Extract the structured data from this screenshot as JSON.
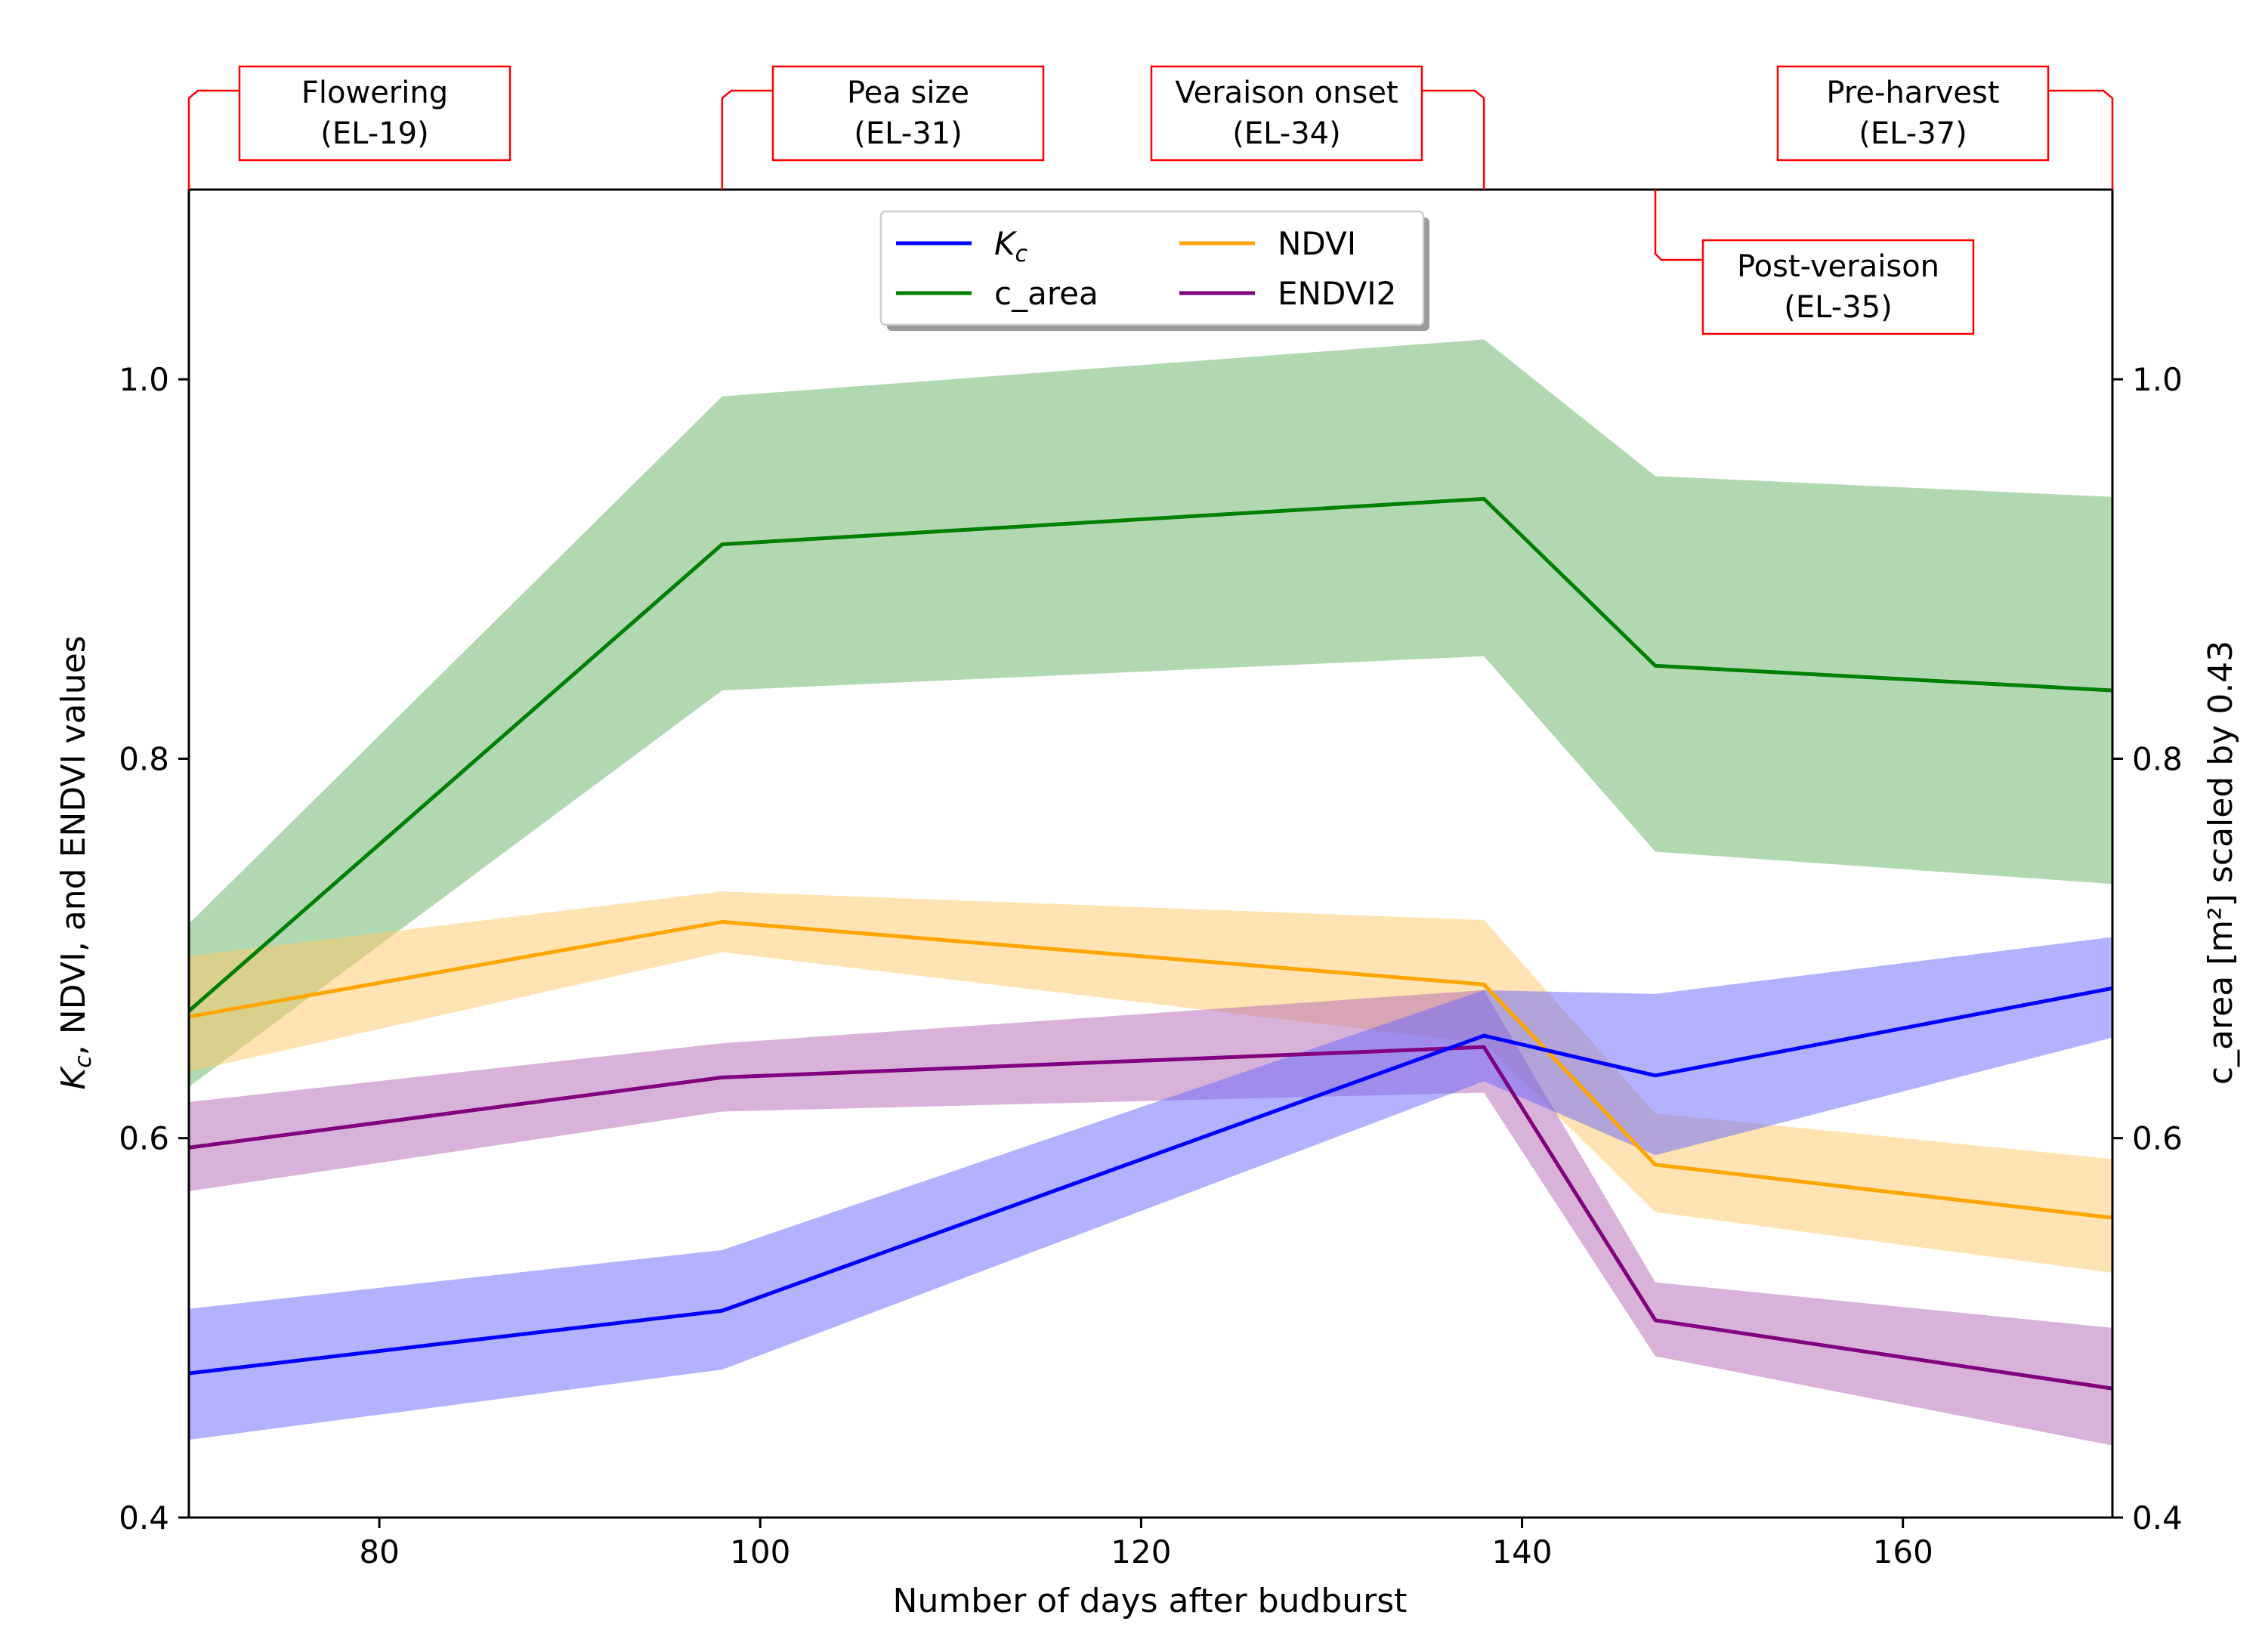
{
  "chart_data": {
    "type": "line",
    "xlabel": "Number of days after budburst",
    "ylabel_left_prefix": "K",
    "ylabel_left_sub": "c",
    "ylabel_left_rest": ", NDVI, and ENDVI values",
    "ylabel_right": "c_area [m²] scaled by 0.43",
    "xlim": [
      70,
      171
    ],
    "ylim": [
      0.4,
      1.1
    ],
    "x_ticks": [
      80,
      100,
      120,
      140,
      160
    ],
    "x_tick_labels": [
      "80",
      "100",
      "120",
      "140",
      "160"
    ],
    "y_ticks": [
      0.4,
      0.6,
      0.8,
      1.0
    ],
    "y_tick_labels": [
      "0.4",
      "0.6",
      "0.8",
      "1.0"
    ],
    "x": [
      70,
      98,
      138,
      147,
      171
    ],
    "series": [
      {
        "name": "c_area",
        "key": "carea",
        "color": "#008000",
        "band_color": "#66b266",
        "values": [
          0.667,
          0.913,
          0.937,
          0.849,
          0.836
        ],
        "lower": [
          0.627,
          0.836,
          0.854,
          0.751,
          0.734
        ],
        "upper": [
          0.713,
          0.991,
          1.021,
          0.949,
          0.938
        ]
      },
      {
        "name": "NDVI",
        "key": "ndvi",
        "color": "#ffa500",
        "band_color": "#ffc766",
        "values": [
          0.664,
          0.714,
          0.681,
          0.586,
          0.558
        ],
        "lower": [
          0.635,
          0.698,
          0.65,
          0.561,
          0.529
        ],
        "upper": [
          0.696,
          0.73,
          0.715,
          0.613,
          0.589
        ]
      },
      {
        "name": "ENDVI2",
        "key": "endvi2",
        "color": "#800080",
        "band_color": "#b366b3",
        "values": [
          0.595,
          0.632,
          0.648,
          0.504,
          0.468
        ],
        "lower": [
          0.572,
          0.614,
          0.624,
          0.485,
          0.438
        ],
        "upper": [
          0.619,
          0.65,
          0.678,
          0.524,
          0.5
        ]
      },
      {
        "name": "Kc",
        "key": "kc",
        "color": "#0000ff",
        "band_color": "#6666ff",
        "values": [
          0.476,
          0.509,
          0.654,
          0.633,
          0.679
        ],
        "lower": [
          0.441,
          0.478,
          0.63,
          0.591,
          0.653
        ],
        "upper": [
          0.51,
          0.541,
          0.678,
          0.676,
          0.706
        ]
      }
    ],
    "legend": {
      "placement": "top-center",
      "entries": [
        {
          "label_main": "K",
          "label_sub": "c",
          "color": "#0000ff"
        },
        {
          "label_main": "c_area",
          "label_sub": "",
          "color": "#008000"
        },
        {
          "label_main": "NDVI",
          "label_sub": "",
          "color": "#ffa500"
        },
        {
          "label_main": "ENDVI2",
          "label_sub": "",
          "color": "#800080"
        }
      ]
    },
    "annotations": [
      {
        "line1": "Flowering",
        "line2": "(EL-19)",
        "x": 70,
        "position": "above"
      },
      {
        "line1": "Pea size",
        "line2": "(EL-31)",
        "x": 98,
        "position": "above"
      },
      {
        "line1": "Veraison onset",
        "line2": "(EL-34)",
        "x": 138,
        "position": "above"
      },
      {
        "line1": "Post-veraison",
        "line2": "(EL-35)",
        "x": 147,
        "position": "inside-top"
      },
      {
        "line1": "Pre-harvest",
        "line2": "(EL-37)",
        "x": 171,
        "position": "above"
      }
    ],
    "annotation_color": "#ff0000"
  }
}
